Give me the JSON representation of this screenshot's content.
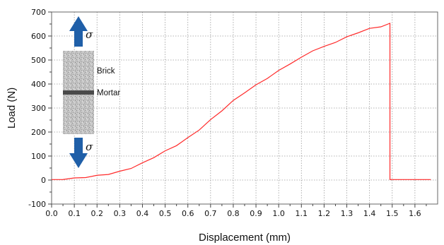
{
  "chart_data": {
    "type": "line",
    "title": "",
    "xlabel": "Displacement (mm)",
    "ylabel": "Load (N)",
    "xlim": [
      0.0,
      1.7
    ],
    "ylim": [
      -100,
      700
    ],
    "x_ticks": [
      "0.0",
      "0.1",
      "0.2",
      "0.3",
      "0.4",
      "0.5",
      "0.6",
      "0.7",
      "0.8",
      "0.9",
      "1.0",
      "1.1",
      "1.2",
      "1.3",
      "1.4",
      "1.5",
      "1.6"
    ],
    "y_ticks": [
      "-100",
      "0",
      "100",
      "200",
      "300",
      "400",
      "500",
      "600",
      "700"
    ],
    "grid": true,
    "series": [
      {
        "color": "#ff2a2a",
        "x": [
          0.0,
          0.05,
          0.1,
          0.15,
          0.2,
          0.25,
          0.3,
          0.35,
          0.4,
          0.45,
          0.5,
          0.55,
          0.6,
          0.65,
          0.7,
          0.75,
          0.8,
          0.85,
          0.9,
          0.95,
          1.0,
          1.05,
          1.1,
          1.15,
          1.2,
          1.25,
          1.3,
          1.35,
          1.4,
          1.45,
          1.49,
          1.49,
          1.55,
          1.6,
          1.67
        ],
        "y": [
          2,
          4,
          7,
          12,
          18,
          25,
          35,
          50,
          70,
          95,
          120,
          145,
          175,
          210,
          250,
          290,
          330,
          365,
          395,
          425,
          455,
          485,
          510,
          540,
          555,
          575,
          595,
          615,
          630,
          640,
          653,
          2,
          2,
          2,
          2
        ]
      }
    ],
    "annotations": {
      "brick_label": "Brick",
      "mortar_label": "Mortar",
      "sigma_top": "σ",
      "sigma_bottom": "σ"
    }
  },
  "colors": {
    "line": "#ff2a2a",
    "grid": "#9a9a9a",
    "arrow": "#1f5fa8",
    "mortar": "#4a4a4a",
    "specimen": "#b9b9b9"
  }
}
